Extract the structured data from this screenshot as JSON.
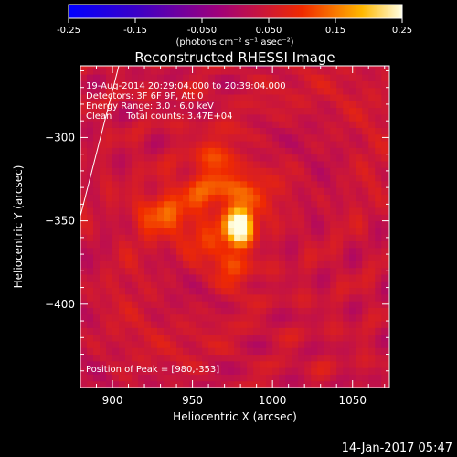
{
  "chart_data": {
    "type": "heatmap",
    "title": "Reconstructed RHESSI Image",
    "xlabel": "Heliocentric X (arcsec)",
    "ylabel": "Heliocentric Y (arcsec)",
    "xlim": [
      880,
      1073
    ],
    "ylim": [
      -450,
      -257
    ],
    "x_ticks": [
      900,
      950,
      1000,
      1050
    ],
    "y_ticks": [
      -300,
      -350,
      -400
    ],
    "colorbar": {
      "range": [
        -0.25,
        0.25
      ],
      "ticks": [
        "-0.25",
        "-0.15",
        "-0.050",
        "0.050",
        "0.15",
        "0.25"
      ],
      "unit_label": "(photons cm⁻² s⁻¹ asec⁻²)"
    },
    "info_lines": [
      "19-Aug-2014 20:29:04.000 to 20:39:04.000",
      "Detectors: 3F 6F 9F, Att 0",
      "Energy Range: 3.0 - 6.0 keV",
      "Clean     Total counts: 3.47E+04"
    ],
    "peak_label": "Position of Peak = [980,-353]",
    "peak": {
      "x": 980,
      "y": -353,
      "value": 0.25
    },
    "sources": [
      {
        "x": 980,
        "y": -353,
        "sigma_x": 6,
        "sigma_y": 8,
        "amplitude": 0.24
      },
      {
        "x": 968,
        "y": -330,
        "sigma_x": 18,
        "sigma_y": 10,
        "amplitude": 0.09
      },
      {
        "x": 930,
        "y": -345,
        "sigma_x": 12,
        "sigma_y": 8,
        "amplitude": 0.08
      },
      {
        "x": 975,
        "y": -380,
        "sigma_x": 8,
        "sigma_y": 8,
        "amplitude": 0.08
      },
      {
        "x": 965,
        "y": -308,
        "sigma_x": 10,
        "sigma_y": 8,
        "amplitude": 0.05
      },
      {
        "x": 955,
        "y": -360,
        "sigma_x": 14,
        "sigma_y": 10,
        "amplitude": 0.06
      }
    ],
    "limb_line": {
      "x": [
        880,
        904
      ],
      "y": [
        -347,
        -257
      ]
    },
    "grid": false,
    "date_stamp": "14-Jan-2017 05:47"
  }
}
